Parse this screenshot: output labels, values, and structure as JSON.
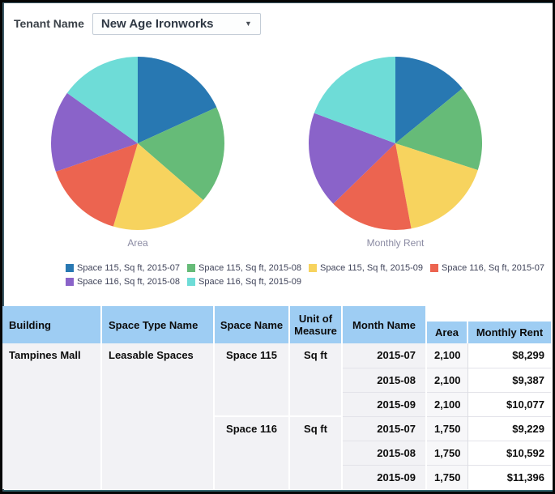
{
  "filter": {
    "label": "Tenant Name",
    "value": "New Age Ironworks"
  },
  "palette": {
    "blue": "#2878b2",
    "green": "#66bb78",
    "yellow": "#f7d35e",
    "red": "#ec6450",
    "purple": "#8a63c9",
    "teal": "#6edcd7",
    "header_blue": "#9ecdf3"
  },
  "chart_data": [
    {
      "type": "pie",
      "title": "Area",
      "labels": [
        "Space 115, Sq ft, 2015-07",
        "Space 115, Sq ft, 2015-08",
        "Space 115, Sq ft, 2015-09",
        "Space 116, Sq ft, 2015-07",
        "Space 116, Sq ft, 2015-08",
        "Space 116, Sq ft, 2015-09"
      ],
      "values": [
        2100,
        2100,
        2100,
        1750,
        1750,
        1750
      ],
      "colors": [
        "#2878b2",
        "#66bb78",
        "#f7d35e",
        "#ec6450",
        "#8a63c9",
        "#6edcd7"
      ],
      "legend_position": "bottom",
      "start_angle_deg": 0,
      "direction": "clockwise"
    },
    {
      "type": "pie",
      "title": "Monthly Rent",
      "labels": [
        "Space 115, Sq ft, 2015-07",
        "Space 115, Sq ft, 2015-08",
        "Space 115, Sq ft, 2015-09",
        "Space 116, Sq ft, 2015-07",
        "Space 116, Sq ft, 2015-08",
        "Space 116, Sq ft, 2015-09"
      ],
      "values": [
        8299,
        9387,
        10077,
        9229,
        10592,
        11396
      ],
      "colors": [
        "#2878b2",
        "#66bb78",
        "#f7d35e",
        "#ec6450",
        "#8a63c9",
        "#6edcd7"
      ],
      "legend_position": "bottom",
      "start_angle_deg": 0,
      "direction": "clockwise"
    }
  ],
  "charts": {
    "captions": [
      "Area",
      "Monthly Rent"
    ],
    "legend": [
      {
        "label": "Space 115, Sq ft, 2015-07",
        "color": "#2878b2"
      },
      {
        "label": "Space 115, Sq ft, 2015-08",
        "color": "#66bb78"
      },
      {
        "label": "Space 115, Sq ft, 2015-09",
        "color": "#f7d35e"
      },
      {
        "label": "Space 116, Sq ft, 2015-07",
        "color": "#ec6450"
      },
      {
        "label": "Space 116, Sq ft, 2015-08",
        "color": "#8a63c9"
      },
      {
        "label": "Space 116, Sq ft, 2015-09",
        "color": "#6edcd7"
      }
    ]
  },
  "table": {
    "headers": [
      "Building",
      "Space Type Name",
      "Space Name",
      "Unit of Measure",
      "Month Name",
      "Area",
      "Monthly Rent"
    ],
    "rows": [
      {
        "building": "Tampines Mall",
        "space_type": "Leasable Spaces",
        "space_name": "Space 115",
        "unit": "Sq ft",
        "month": "2015-07",
        "area": "2,100",
        "rent": "$8,299"
      },
      {
        "month": "2015-08",
        "area": "2,100",
        "rent": "$9,387"
      },
      {
        "month": "2015-09",
        "area": "2,100",
        "rent": "$10,077"
      },
      {
        "space_name": "Space 116",
        "unit": "Sq ft",
        "month": "2015-07",
        "area": "1,750",
        "rent": "$9,229"
      },
      {
        "month": "2015-08",
        "area": "1,750",
        "rent": "$10,592"
      },
      {
        "month": "2015-09",
        "area": "1,750",
        "rent": "$11,396"
      }
    ]
  }
}
